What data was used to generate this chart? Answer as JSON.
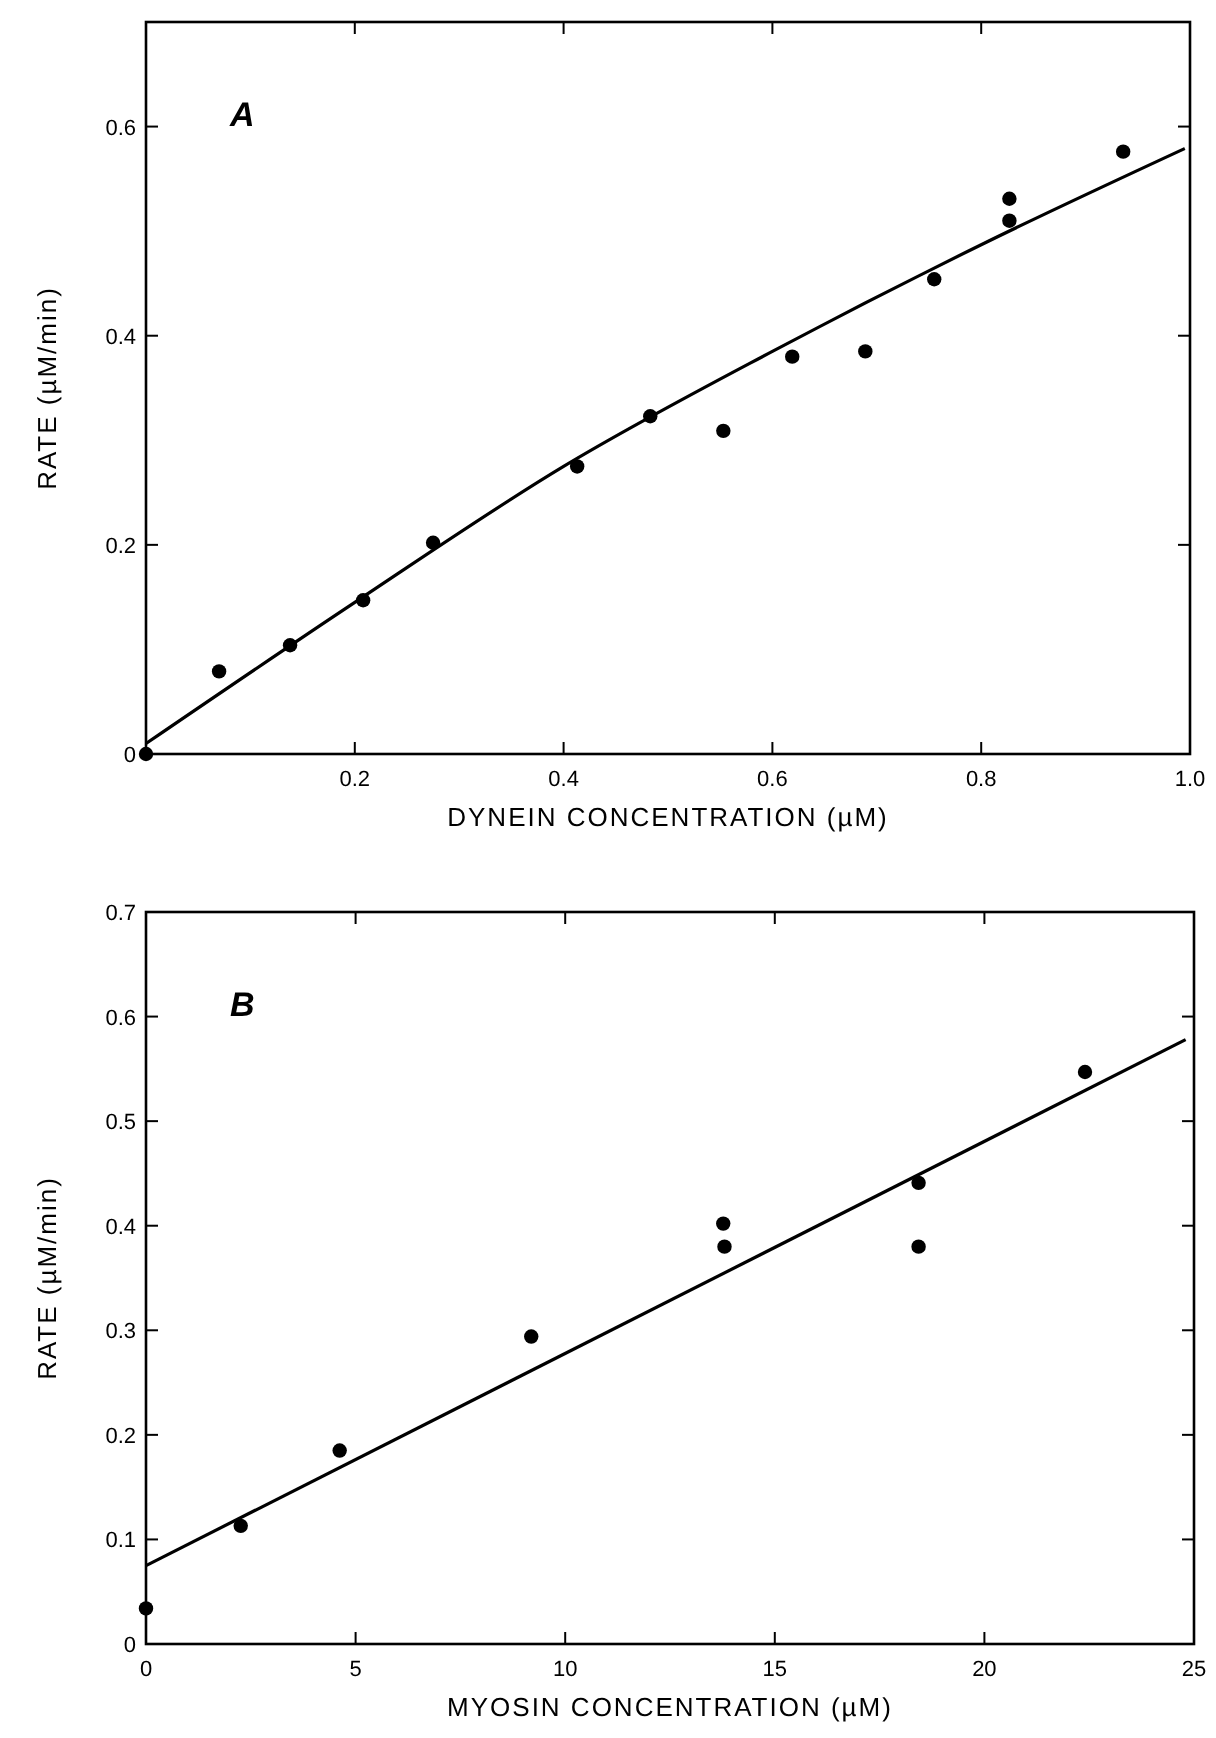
{
  "chart_data": [
    {
      "type": "scatter",
      "xlabel": "DYNEIN CONCENTRATION (µM)",
      "ylabel": "RATE (µM/min)",
      "annotations": [
        "A"
      ],
      "xlim": [
        0,
        1
      ],
      "ylim": [
        0,
        0.7
      ],
      "xticks": [
        0.2,
        0.4,
        0.6,
        0.8,
        {
          "value": 1,
          "label": "1.0"
        }
      ],
      "yticks": [
        0,
        0.2,
        0.4,
        0.6
      ],
      "grid": false,
      "marker": "circle",
      "series": [
        {
          "color": "#000000",
          "x": [
            0,
            0.07,
            0.138,
            0.208,
            0.275,
            0.413,
            0.483,
            0.553,
            0.619,
            0.689,
            0.755,
            0.827,
            0.827,
            0.936
          ],
          "values": [
            0,
            0.079,
            0.104,
            0.147,
            0.202,
            0.275,
            0.323,
            0.309,
            0.38,
            0.385,
            0.454,
            0.531,
            0.51,
            0.576
          ]
        },
        {
          "type": "line",
          "color": "#000000",
          "marker": "none",
          "line_style": "solid",
          "x": [
            0,
            0.2,
            0.4,
            0.6,
            0.8,
            0.995
          ],
          "values": [
            0.01,
            0.145,
            0.275,
            0.385,
            0.487,
            0.579
          ]
        }
      ]
    },
    {
      "type": "scatter",
      "xlabel": "MYOSIN CONCENTRATION (µM)",
      "ylabel": "RATE (µM/min)",
      "annotations": [
        "B"
      ],
      "xlim": [
        0,
        25
      ],
      "ylim": [
        0,
        0.7
      ],
      "xticks": [
        0,
        5,
        10,
        15,
        20,
        25
      ],
      "yticks": [
        0,
        0.1,
        0.2,
        0.3,
        0.4,
        0.5,
        0.6,
        0.7
      ],
      "grid": false,
      "marker": "circle",
      "series": [
        {
          "color": "#000000",
          "x": [
            0,
            2.26,
            4.62,
            9.19,
            13.77,
            13.8,
            18.43,
            18.43,
            22.4
          ],
          "values": [
            0.034,
            0.113,
            0.185,
            0.294,
            0.402,
            0.38,
            0.441,
            0.38,
            0.547
          ]
        },
        {
          "type": "line",
          "color": "#000000",
          "marker": "none",
          "line_style": "solid",
          "x": [
            0,
            24.8
          ],
          "values": [
            0.075,
            0.578
          ]
        }
      ]
    }
  ]
}
